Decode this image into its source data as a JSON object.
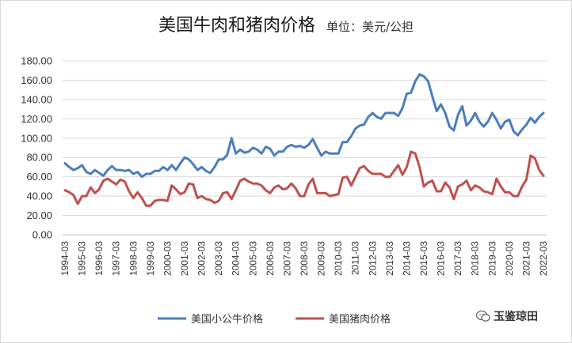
{
  "title": "美国牛肉和猪肉价格",
  "subtitle": "单位：美元/公担",
  "brand": "玉鉴琼田",
  "chart_data": {
    "type": "line",
    "title": "美国牛肉和猪肉价格",
    "subtitle": "单位：美元/公担",
    "ylim": [
      0,
      180
    ],
    "yticks": [
      "0.00",
      "20.00",
      "40.00",
      "60.00",
      "80.00",
      "100.00",
      "120.00",
      "140.00",
      "160.00",
      "180.00"
    ],
    "xticks": [
      "1994-03",
      "1995-03",
      "1996-03",
      "1997-03",
      "1998-03",
      "1999-03",
      "2000-03",
      "2001-03",
      "2002-03",
      "2003-03",
      "2004-03",
      "2005-03",
      "2006-03",
      "2007-03",
      "2008-03",
      "2009-03",
      "2010-03",
      "2011-03",
      "2012-03",
      "2013-03",
      "2014-03",
      "2015-03",
      "2016-03",
      "2017-03",
      "2018-03",
      "2019-03",
      "2020-03",
      "2021-03",
      "2022-03"
    ],
    "legend_position": "bottom",
    "grid": true,
    "series": [
      {
        "name": "美国小公牛价格",
        "color": "#4a7ebb",
        "values": [
          74,
          70,
          67,
          69,
          72,
          65,
          63,
          67,
          64,
          61,
          67,
          71,
          67,
          67,
          66,
          67,
          63,
          65,
          60,
          63,
          63,
          66,
          66,
          70,
          67,
          72,
          67,
          74,
          80,
          78,
          73,
          67,
          70,
          66,
          64,
          70,
          78,
          78,
          83,
          100,
          84,
          88,
          85,
          86,
          90,
          88,
          84,
          91,
          89,
          82,
          86,
          86,
          91,
          93,
          91,
          92,
          90,
          93,
          99,
          90,
          82,
          86,
          84,
          84,
          84,
          96,
          96,
          102,
          110,
          113,
          114,
          122,
          126,
          122,
          120,
          126,
          126,
          126,
          123,
          131,
          146,
          147,
          159,
          166,
          164,
          159,
          143,
          128,
          135,
          126,
          112,
          108,
          124,
          133,
          113,
          118,
          126,
          117,
          112,
          117,
          126,
          119,
          110,
          117,
          119,
          107,
          103,
          109,
          114,
          121,
          116,
          122,
          126
        ]
      },
      {
        "name": "美国猪肉价格",
        "color": "#c0504d",
        "values": [
          46,
          44,
          41,
          32,
          40,
          40,
          49,
          43,
          47,
          56,
          58,
          55,
          52,
          57,
          55,
          45,
          38,
          44,
          38,
          30,
          30,
          35,
          36,
          36,
          35,
          51,
          47,
          42,
          44,
          53,
          52,
          38,
          40,
          37,
          36,
          33,
          35,
          43,
          44,
          37,
          46,
          56,
          58,
          55,
          53,
          53,
          51,
          46,
          43,
          49,
          51,
          47,
          48,
          53,
          48,
          40,
          40,
          52,
          58,
          43,
          43,
          43,
          40,
          41,
          42,
          59,
          60,
          51,
          60,
          69,
          71,
          66,
          63,
          63,
          63,
          60,
          60,
          66,
          72,
          62,
          70,
          86,
          84,
          70,
          50,
          54,
          56,
          45,
          45,
          54,
          49,
          37,
          50,
          52,
          56,
          46,
          51,
          49,
          45,
          44,
          42,
          58,
          50,
          44,
          44,
          40,
          40,
          50,
          57,
          82,
          79,
          67,
          61
        ]
      }
    ]
  }
}
